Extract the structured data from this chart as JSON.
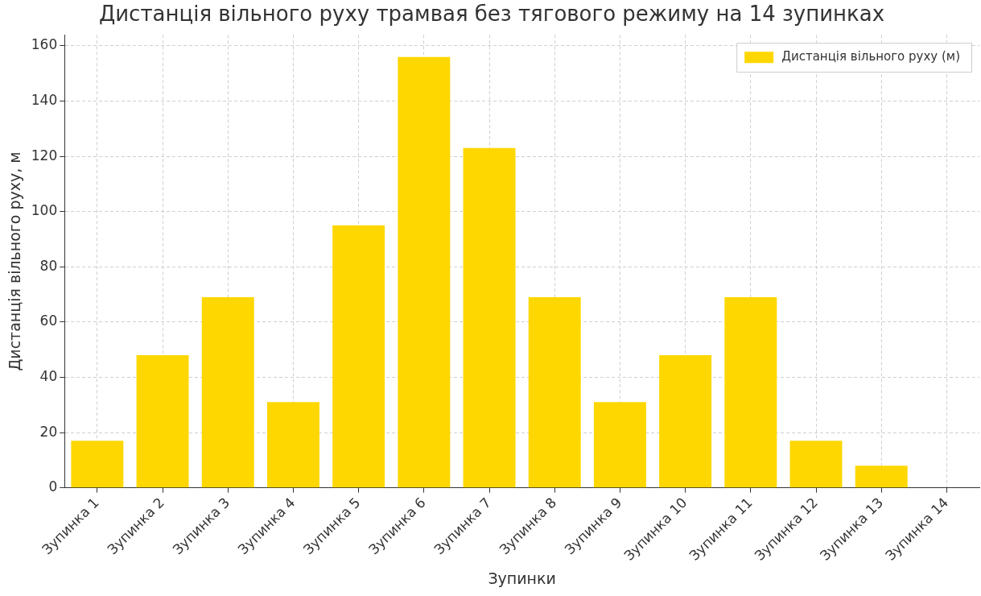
{
  "chart_data": {
    "type": "bar",
    "title": "Дистанція вільного руху трамвая без тягового режиму на 14 зупинках",
    "xlabel": "Зупинки",
    "ylabel": "Дистанція вільного руху, м",
    "categories": [
      "Зупинка 1",
      "Зупинка 2",
      "Зупинка 3",
      "Зупинка 4",
      "Зупинка 5",
      "Зупинка 6",
      "Зупинка 7",
      "Зупинка 8",
      "Зупинка 9",
      "Зупинка 10",
      "Зупинка 11",
      "Зупинка 12",
      "Зупинка 13",
      "Зупинка 14"
    ],
    "series": [
      {
        "name": "Дистанція вільного руху (м)",
        "color": "#ffd700",
        "values": [
          17,
          48,
          69,
          31,
          95,
          156,
          123,
          69,
          31,
          48,
          69,
          17,
          8,
          0
        ]
      }
    ],
    "ylim": [
      0,
      164
    ],
    "yticks": [
      0,
      20,
      40,
      60,
      80,
      100,
      120,
      140,
      160
    ],
    "grid": true,
    "legend": "top right"
  }
}
